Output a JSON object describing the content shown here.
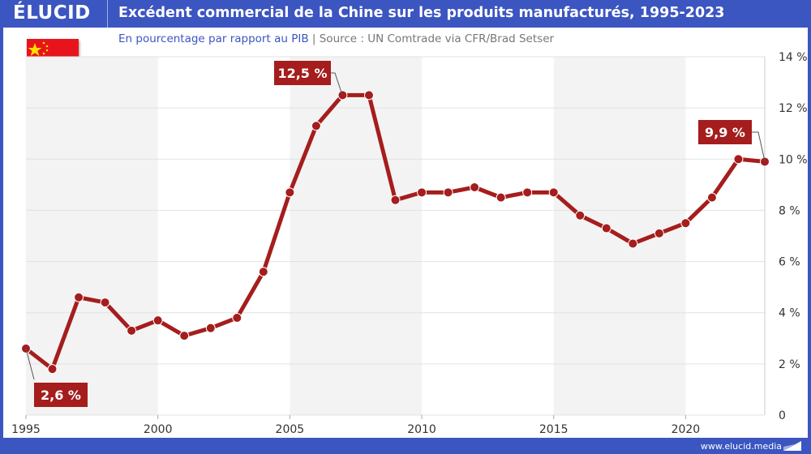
{
  "header": {
    "logo": "ÉLUCID",
    "title": "Excédent commercial de la Chine sur les produits manufacturés, 1995-2023"
  },
  "subtitle": {
    "main": "En pourcentage par rapport au PIB",
    "separator": "|",
    "source": "Source : UN Comtrade via CFR/Brad Setser"
  },
  "footer": {
    "url": "www.elucid.media"
  },
  "flag": "china-flag",
  "colors": {
    "brand": "#3b55c1",
    "series": "#a51d1d",
    "band": "#f3f3f3"
  },
  "chart_data": {
    "type": "line",
    "title": "Excédent commercial de la Chine sur les produits manufacturés, 1995-2023",
    "xlabel": "",
    "ylabel": "",
    "x": [
      1995,
      1996,
      1997,
      1998,
      1999,
      2000,
      2001,
      2002,
      2003,
      2004,
      2005,
      2006,
      2007,
      2008,
      2009,
      2010,
      2011,
      2012,
      2013,
      2014,
      2015,
      2016,
      2017,
      2018,
      2019,
      2020,
      2021,
      2022,
      2023
    ],
    "values": [
      2.6,
      1.8,
      4.6,
      4.4,
      3.3,
      3.7,
      3.1,
      3.4,
      3.8,
      5.6,
      8.7,
      11.3,
      12.5,
      12.5,
      8.4,
      8.7,
      8.7,
      8.9,
      8.5,
      8.7,
      8.7,
      7.8,
      7.3,
      6.7,
      7.1,
      7.5,
      8.5,
      10.0,
      9.9
    ],
    "xlim": [
      1995,
      2023
    ],
    "ylim": [
      0,
      14
    ],
    "x_ticks": [
      "1995",
      "2000",
      "2005",
      "2010",
      "2015",
      "2020"
    ],
    "y_ticks": [
      "0",
      "2 %",
      "4 %",
      "6 %",
      "8 %",
      "10 %",
      "12 %",
      "14 %"
    ],
    "grid": true,
    "y_axis_side": "right",
    "annotations": [
      {
        "x": 1995,
        "text": "2,6 %"
      },
      {
        "x": 2007,
        "text": "12,5 %"
      },
      {
        "x": 2023,
        "text": "9,9 %"
      }
    ]
  }
}
